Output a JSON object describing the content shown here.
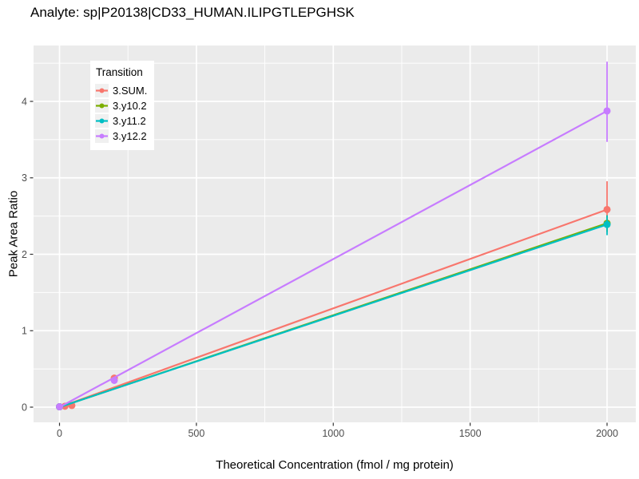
{
  "title": "Analyte: sp|P20138|CD33_HUMAN.ILIPGTLEPGHSK",
  "chart_data": {
    "type": "line",
    "title": "Analyte: sp|P20138|CD33_HUMAN.ILIPGTLEPGHSK",
    "xlabel": "Theoretical Concentration (fmol / mg protein)",
    "ylabel": "Peak Area Ratio",
    "xlim": [
      -100,
      2100
    ],
    "ylim": [
      -0.2,
      4.73
    ],
    "x_ticks": [
      0,
      500,
      1000,
      1500,
      2000
    ],
    "y_ticks": [
      0,
      1,
      2,
      3,
      4
    ],
    "x_minor_ticks": [
      250,
      750,
      1250,
      1750
    ],
    "y_minor_ticks": [
      0.5,
      1.5,
      2.5,
      3.5,
      4.5
    ],
    "grid": "on",
    "panel_bg": "#EBEBEB",
    "grid_color": "#FFFFFF",
    "tick_label_color": "#4D4D4D",
    "tick_mark_color": "#333333",
    "legend_title": "Transition",
    "legend_position": "top-left-inside",
    "series": [
      {
        "name": "3.SUM.",
        "color": "#F8766D",
        "line": {
          "x": [
            0,
            2000
          ],
          "y": [
            0,
            2.585
          ]
        },
        "points": [
          [
            0,
            0.005
          ],
          [
            20,
            0.012
          ],
          [
            45,
            0.022
          ],
          [
            200,
            0.38
          ],
          [
            2000,
            2.585
          ]
        ],
        "error_bars": [
          {
            "x": 2000,
            "ymin": 2.3,
            "ymax": 2.955
          }
        ]
      },
      {
        "name": "3.y10.2",
        "color": "#7CAE00",
        "line": {
          "x": [
            0,
            2000
          ],
          "y": [
            0,
            2.405
          ]
        },
        "points": [
          [
            0,
            0.005
          ],
          [
            2000,
            2.405
          ]
        ],
        "error_bars": [
          {
            "x": 2000,
            "ymin": 2.29,
            "ymax": 2.51
          }
        ]
      },
      {
        "name": "3.y11.2",
        "color": "#00BFC4",
        "line": {
          "x": [
            0,
            2000
          ],
          "y": [
            0,
            2.39
          ]
        },
        "points": [
          [
            0,
            0.005
          ],
          [
            2000,
            2.39
          ]
        ],
        "error_bars": [
          {
            "x": 2000,
            "ymin": 2.25,
            "ymax": 2.51
          }
        ]
      },
      {
        "name": "3.y12.2",
        "color": "#C77CFF",
        "line": {
          "x": [
            0,
            2000
          ],
          "y": [
            0,
            3.875
          ]
        },
        "points": [
          [
            0,
            0.005
          ],
          [
            200,
            0.35
          ],
          [
            2000,
            3.875
          ]
        ],
        "error_bars": [
          {
            "x": 2000,
            "ymin": 3.47,
            "ymax": 4.52
          }
        ]
      }
    ]
  }
}
